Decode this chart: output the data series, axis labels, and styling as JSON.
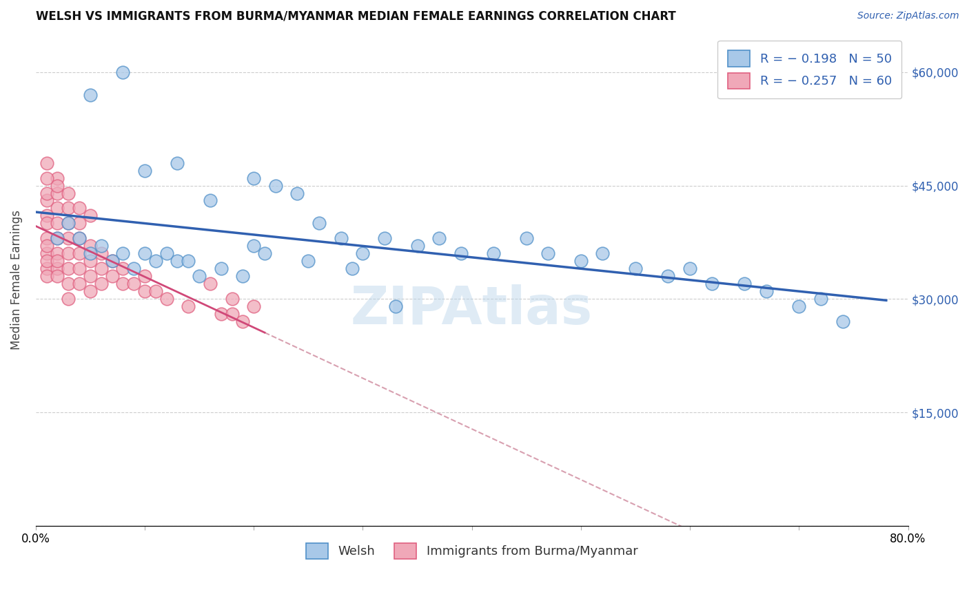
{
  "title": "WELSH VS IMMIGRANTS FROM BURMA/MYANMAR MEDIAN FEMALE EARNINGS CORRELATION CHART",
  "source": "Source: ZipAtlas.com",
  "ylabel": "Median Female Earnings",
  "xlim": [
    0.0,
    0.8
  ],
  "ylim": [
    0,
    65000
  ],
  "yticks": [
    0,
    15000,
    30000,
    45000,
    60000
  ],
  "ytick_labels": [
    "",
    "$15,000",
    "$30,000",
    "$45,000",
    "$60,000"
  ],
  "xticks": [
    0.0,
    0.1,
    0.2,
    0.3,
    0.4,
    0.5,
    0.6,
    0.7,
    0.8
  ],
  "legend_label1": "R = − 0.198   N = 50",
  "legend_label2": "R = − 0.257   N = 60",
  "legend_bottom_label1": "Welsh",
  "legend_bottom_label2": "Immigrants from Burma/Myanmar",
  "blue_face": "#a8c8e8",
  "blue_edge": "#5090c8",
  "pink_face": "#f0a8b8",
  "pink_edge": "#e06080",
  "blue_line": "#3060b0",
  "pink_line": "#d04878",
  "dash_line": "#d8a0b0",
  "welsh_x": [
    0.05,
    0.08,
    0.1,
    0.13,
    0.16,
    0.2,
    0.2,
    0.22,
    0.24,
    0.26,
    0.28,
    0.3,
    0.32,
    0.35,
    0.37,
    0.39,
    0.42,
    0.45,
    0.47,
    0.5,
    0.52,
    0.55,
    0.58,
    0.6,
    0.62,
    0.65,
    0.67,
    0.7,
    0.72,
    0.74,
    0.02,
    0.03,
    0.04,
    0.05,
    0.06,
    0.07,
    0.08,
    0.09,
    0.1,
    0.11,
    0.12,
    0.13,
    0.14,
    0.15,
    0.17,
    0.19,
    0.21,
    0.25,
    0.29,
    0.33
  ],
  "welsh_y": [
    57000,
    60000,
    47000,
    48000,
    43000,
    46000,
    37000,
    45000,
    44000,
    40000,
    38000,
    36000,
    38000,
    37000,
    38000,
    36000,
    36000,
    38000,
    36000,
    35000,
    36000,
    34000,
    33000,
    34000,
    32000,
    32000,
    31000,
    29000,
    30000,
    27000,
    38000,
    40000,
    38000,
    36000,
    37000,
    35000,
    36000,
    34000,
    36000,
    35000,
    36000,
    35000,
    35000,
    33000,
    34000,
    33000,
    36000,
    35000,
    34000,
    29000
  ],
  "burma_x": [
    0.01,
    0.01,
    0.01,
    0.01,
    0.01,
    0.01,
    0.01,
    0.01,
    0.01,
    0.01,
    0.02,
    0.02,
    0.02,
    0.02,
    0.02,
    0.02,
    0.02,
    0.02,
    0.02,
    0.03,
    0.03,
    0.03,
    0.03,
    0.03,
    0.03,
    0.03,
    0.04,
    0.04,
    0.04,
    0.04,
    0.04,
    0.05,
    0.05,
    0.05,
    0.05,
    0.06,
    0.06,
    0.06,
    0.07,
    0.07,
    0.08,
    0.08,
    0.09,
    0.1,
    0.1,
    0.11,
    0.12,
    0.14,
    0.16,
    0.17,
    0.18,
    0.18,
    0.19,
    0.2,
    0.01,
    0.01,
    0.02,
    0.03,
    0.04,
    0.05
  ],
  "burma_y": [
    43000,
    44000,
    41000,
    38000,
    40000,
    36000,
    37000,
    34000,
    35000,
    33000,
    46000,
    44000,
    42000,
    40000,
    38000,
    36000,
    34000,
    33000,
    35000,
    42000,
    40000,
    38000,
    36000,
    34000,
    32000,
    30000,
    40000,
    38000,
    36000,
    34000,
    32000,
    37000,
    35000,
    33000,
    31000,
    36000,
    34000,
    32000,
    35000,
    33000,
    34000,
    32000,
    32000,
    33000,
    31000,
    31000,
    30000,
    29000,
    32000,
    28000,
    30000,
    28000,
    27000,
    29000,
    48000,
    46000,
    45000,
    44000,
    42000,
    41000
  ]
}
